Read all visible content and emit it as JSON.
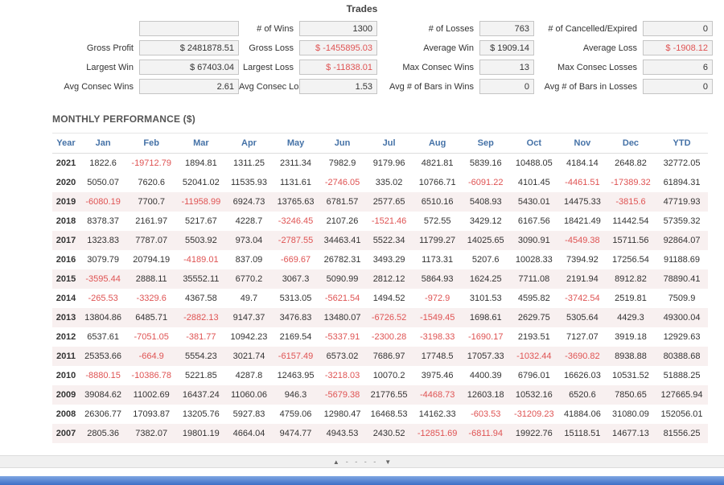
{
  "trades": {
    "title": "Trades",
    "stats": [
      [
        {
          "label": "",
          "value": ""
        },
        {
          "label": "# of Wins",
          "value": "1300"
        },
        {
          "label": "# of Losses",
          "value": "763"
        },
        {
          "label": "# of Cancelled/Expired",
          "value": "0"
        }
      ],
      [
        {
          "label": "Gross Profit",
          "value": "$ 2481878.51"
        },
        {
          "label": "Gross Loss",
          "value": "$ -1455895.03"
        },
        {
          "label": "Average Win",
          "value": "$ 1909.14"
        },
        {
          "label": "Average Loss",
          "value": "$ -1908.12"
        }
      ],
      [
        {
          "label": "Largest Win",
          "value": "$ 67403.04"
        },
        {
          "label": "Largest Loss",
          "value": "$ -11838.01"
        },
        {
          "label": "Max Consec Wins",
          "value": "13"
        },
        {
          "label": "Max Consec Losses",
          "value": "6"
        }
      ],
      [
        {
          "label": "Avg Consec Wins",
          "value": "2.61"
        },
        {
          "label": "Avg Consec Loss",
          "value": "1.53"
        },
        {
          "label": "Avg # of Bars in Wins",
          "value": "0"
        },
        {
          "label": "Avg # of Bars in Losses",
          "value": "0"
        }
      ]
    ]
  },
  "monthly": {
    "title": "MONTHLY PERFORMANCE ($)",
    "columns": [
      "Year",
      "Jan",
      "Feb",
      "Mar",
      "Apr",
      "May",
      "Jun",
      "Jul",
      "Aug",
      "Sep",
      "Oct",
      "Nov",
      "Dec",
      "YTD"
    ],
    "rows": [
      {
        "year": "2021",
        "values": [
          "1822.6",
          "-19712.79",
          "1894.81",
          "1311.25",
          "2311.34",
          "7982.9",
          "9179.96",
          "4821.81",
          "5839.16",
          "10488.05",
          "4184.14",
          "2648.82",
          "32772.05"
        ]
      },
      {
        "year": "2020",
        "values": [
          "5050.07",
          "7620.6",
          "52041.02",
          "11535.93",
          "1131.61",
          "-2746.05",
          "335.02",
          "10766.71",
          "-6091.22",
          "4101.45",
          "-4461.51",
          "-17389.32",
          "61894.31"
        ]
      },
      {
        "year": "2019",
        "values": [
          "-6080.19",
          "7700.7",
          "-11958.99",
          "6924.73",
          "13765.63",
          "6781.57",
          "2577.65",
          "6510.16",
          "5408.93",
          "5430.01",
          "14475.33",
          "-3815.6",
          "47719.93"
        ]
      },
      {
        "year": "2018",
        "values": [
          "8378.37",
          "2161.97",
          "5217.67",
          "4228.7",
          "-3246.45",
          "2107.26",
          "-1521.46",
          "572.55",
          "3429.12",
          "6167.56",
          "18421.49",
          "11442.54",
          "57359.32"
        ]
      },
      {
        "year": "2017",
        "values": [
          "1323.83",
          "7787.07",
          "5503.92",
          "973.04",
          "-2787.55",
          "34463.41",
          "5522.34",
          "11799.27",
          "14025.65",
          "3090.91",
          "-4549.38",
          "15711.56",
          "92864.07"
        ]
      },
      {
        "year": "2016",
        "values": [
          "3079.79",
          "20794.19",
          "-4189.01",
          "837.09",
          "-669.67",
          "26782.31",
          "3493.29",
          "1173.31",
          "5207.6",
          "10028.33",
          "7394.92",
          "17256.54",
          "91188.69"
        ]
      },
      {
        "year": "2015",
        "values": [
          "-3595.44",
          "2888.11",
          "35552.11",
          "6770.2",
          "3067.3",
          "5090.99",
          "2812.12",
          "5864.93",
          "1624.25",
          "7711.08",
          "2191.94",
          "8912.82",
          "78890.41"
        ]
      },
      {
        "year": "2014",
        "values": [
          "-265.53",
          "-3329.6",
          "4367.58",
          "49.7",
          "5313.05",
          "-5621.54",
          "1494.52",
          "-972.9",
          "3101.53",
          "4595.82",
          "-3742.54",
          "2519.81",
          "7509.9"
        ]
      },
      {
        "year": "2013",
        "values": [
          "13804.86",
          "6485.71",
          "-2882.13",
          "9147.37",
          "3476.83",
          "13480.07",
          "-6726.52",
          "-1549.45",
          "1698.61",
          "2629.75",
          "5305.64",
          "4429.3",
          "49300.04"
        ]
      },
      {
        "year": "2012",
        "values": [
          "6537.61",
          "-7051.05",
          "-381.77",
          "10942.23",
          "2169.54",
          "-5337.91",
          "-2300.28",
          "-3198.33",
          "-1690.17",
          "2193.51",
          "7127.07",
          "3919.18",
          "12929.63"
        ]
      },
      {
        "year": "2011",
        "values": [
          "25353.66",
          "-664.9",
          "5554.23",
          "3021.74",
          "-6157.49",
          "6573.02",
          "7686.97",
          "17748.5",
          "17057.33",
          "-1032.44",
          "-3690.82",
          "8938.88",
          "80388.68"
        ]
      },
      {
        "year": "2010",
        "values": [
          "-8880.15",
          "-10386.78",
          "5221.85",
          "4287.8",
          "12463.95",
          "-3218.03",
          "10070.2",
          "3975.46",
          "4400.39",
          "6796.01",
          "16626.03",
          "10531.52",
          "51888.25"
        ]
      },
      {
        "year": "2009",
        "values": [
          "39084.62",
          "11002.69",
          "16437.24",
          "11060.06",
          "946.3",
          "-5679.38",
          "21776.55",
          "-4468.73",
          "12603.18",
          "10532.16",
          "6520.6",
          "7850.65",
          "127665.94"
        ]
      },
      {
        "year": "2008",
        "values": [
          "26306.77",
          "17093.87",
          "13205.76",
          "5927.83",
          "4759.06",
          "12980.47",
          "16468.53",
          "14162.33",
          "-603.53",
          "-31209.23",
          "41884.06",
          "31080.09",
          "152056.01"
        ]
      },
      {
        "year": "2007",
        "values": [
          "2805.36",
          "7382.07",
          "19801.19",
          "4664.04",
          "9474.77",
          "4943.53",
          "2430.52",
          "-12851.69",
          "-6811.94",
          "19922.76",
          "15118.51",
          "14677.13",
          "81556.25"
        ]
      }
    ]
  },
  "scroller": {
    "up": "▲",
    "dots": "- - - -",
    "down": "▼"
  },
  "colors": {
    "header_blue": "#4572a7",
    "negative_red": "#df5353",
    "row_stripe": "#f8f0f0",
    "footer_blue": "#3e6fc6"
  }
}
